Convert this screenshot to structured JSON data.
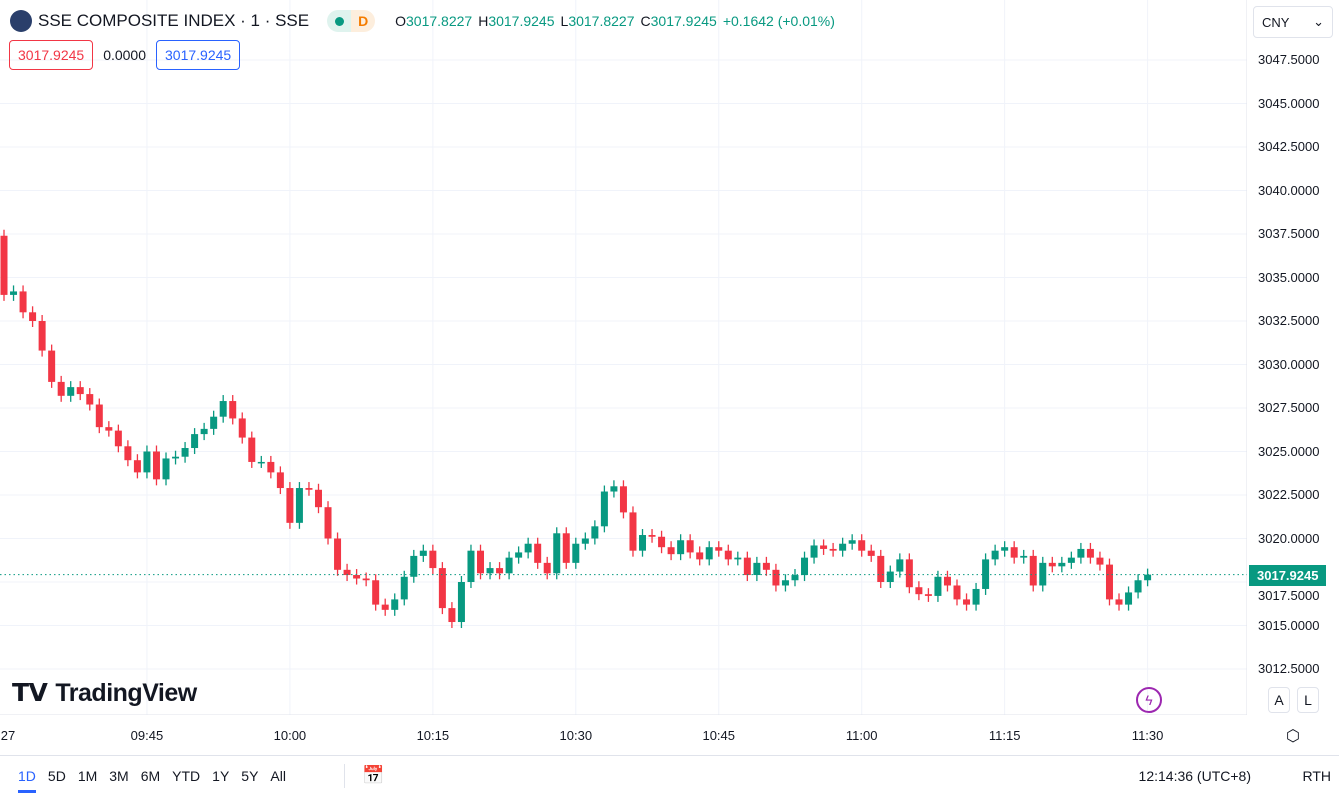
{
  "header": {
    "symbol_title": "SSE COMPOSITE INDEX · 1 · SSE",
    "status_letter": "D",
    "ohlc": [
      {
        "k": "O",
        "v": "3017.8227"
      },
      {
        "k": "H",
        "v": "3017.9245"
      },
      {
        "k": "L",
        "v": "3017.8227"
      },
      {
        "k": "C",
        "v": "3017.9245"
      }
    ],
    "change": "+0.1642 (+0.01%)",
    "sell_price": "3017.9245",
    "spread": "0.0000",
    "buy_price": "3017.9245",
    "currency": "CNY"
  },
  "price_axis": {
    "ticks": [
      "3047.5000",
      "3045.0000",
      "3042.5000",
      "3040.0000",
      "3037.5000",
      "3035.0000",
      "3032.5000",
      "3030.0000",
      "3027.5000",
      "3025.0000",
      "3022.5000",
      "3020.0000",
      "3017.5000",
      "3015.0000",
      "3012.5000"
    ],
    "current": "3017.9245"
  },
  "time_axis": {
    "labels": [
      "27",
      "09:45",
      "10:00",
      "10:15",
      "10:30",
      "10:45",
      "11:00",
      "11:15",
      "11:30"
    ]
  },
  "brand": "TradingView",
  "scale_buttons": {
    "auto": "A",
    "log": "L"
  },
  "bottom": {
    "ranges": [
      "1D",
      "5D",
      "1M",
      "3M",
      "6M",
      "YTD",
      "1Y",
      "5Y",
      "All"
    ],
    "active": "1D",
    "clock": "12:14:36 (UTC+8)",
    "session": "RTH"
  },
  "colors": {
    "up": "#089981",
    "down": "#f23645",
    "accent": "#2962ff"
  },
  "icons": {
    "calendar": "calendar-goto-icon",
    "settings": "settings-icon",
    "bolt": "lightning-icon"
  },
  "chart_data": {
    "type": "candlestick",
    "interval": "1 minute",
    "start_time": "09:30",
    "end_time": "11:30",
    "ylim": [
      3011,
      3048.5
    ],
    "grid": true,
    "first_open": 3037.4,
    "close": [
      3034.0,
      3034.2,
      3033.0,
      3032.5,
      3030.8,
      3029.0,
      3028.2,
      3028.7,
      3028.3,
      3027.7,
      3026.4,
      3026.2,
      3025.3,
      3024.5,
      3023.8,
      3025.0,
      3023.4,
      3024.6,
      3024.7,
      3025.2,
      3026.0,
      3026.3,
      3027.0,
      3027.9,
      3026.9,
      3025.8,
      3024.4,
      3024.4,
      3023.8,
      3022.9,
      3020.9,
      3022.9,
      3022.8,
      3021.8,
      3020.0,
      3018.2,
      3017.9,
      3017.7,
      3017.6,
      3016.2,
      3015.9,
      3016.5,
      3017.8,
      3019.0,
      3019.3,
      3018.3,
      3016.0,
      3015.2,
      3017.5,
      3019.3,
      3018.0,
      3018.3,
      3018.0,
      3018.9,
      3019.2,
      3019.7,
      3018.6,
      3018.0,
      3020.3,
      3018.6,
      3019.7,
      3020.0,
      3020.7,
      3022.7,
      3023.0,
      3021.5,
      3019.3,
      3020.2,
      3020.1,
      3019.5,
      3019.1,
      3019.9,
      3019.2,
      3018.8,
      3019.5,
      3019.3,
      3018.8,
      3018.9,
      3017.9,
      3018.6,
      3018.2,
      3017.3,
      3017.6,
      3017.9,
      3018.9,
      3019.6,
      3019.4,
      3019.3,
      3019.7,
      3019.9,
      3019.3,
      3019.0,
      3017.5,
      3018.1,
      3018.8,
      3017.2,
      3016.8,
      3016.7,
      3017.8,
      3017.3,
      3016.5,
      3016.2,
      3017.1,
      3018.8,
      3019.3,
      3019.5,
      3018.9,
      3019.0,
      3017.3,
      3018.6,
      3018.4,
      3018.6,
      3018.9,
      3019.4,
      3018.9,
      3018.5,
      3016.5,
      3016.2,
      3016.9,
      3017.6,
      3017.9245
    ]
  }
}
